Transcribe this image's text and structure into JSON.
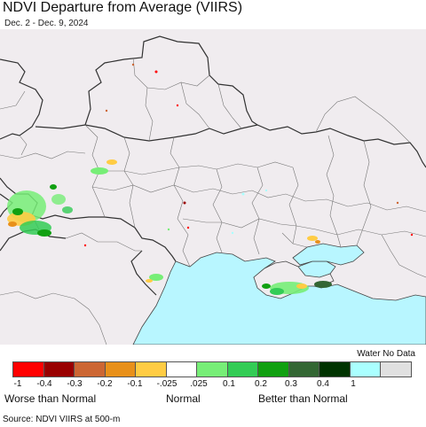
{
  "title": "NDVI Departure from Average (VIIRS)",
  "subtitle": "Dec. 2 - Dec. 9, 2024",
  "legend": {
    "water_no_data_label": "Water No Data",
    "colors": [
      "#ff0000",
      "#990000",
      "#cc6633",
      "#e8901a",
      "#ffcc44",
      "#ffffff",
      "#77ee77",
      "#33cc55",
      "#11a011",
      "#336633",
      "#003300",
      "#aaffff",
      "#e0e0e0"
    ],
    "tick_labels": [
      "-1",
      "-0.4",
      "-0.3",
      "-0.2",
      "-0.1",
      "-.025",
      ".025",
      "0.1",
      "0.2",
      "0.3",
      "0.4",
      "1"
    ],
    "worse_label": "Worse than Normal",
    "normal_label": "Normal",
    "better_label": "Better than Normal"
  },
  "map": {
    "land_color": "#f0ecef",
    "sea_color": "#b8f6ff",
    "border_color": "#555555"
  },
  "source": "Source: NDVI VIIRS at 500-m"
}
